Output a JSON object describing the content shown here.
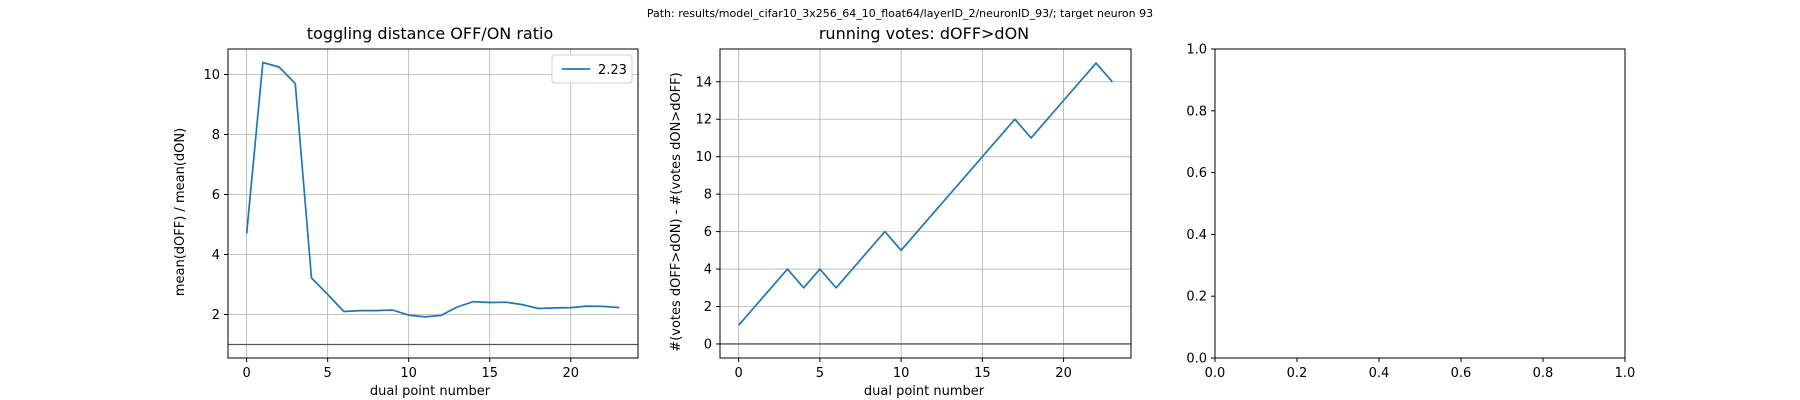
{
  "suptitle": "Path: results/model_cifar10_3x256_64_10_float64/layerID_2/neuronID_93/; target neuron 93",
  "colors": {
    "series": "#1f77b4",
    "hline": "#555555",
    "grid": "#b0b0b0"
  },
  "chart_data": [
    {
      "type": "line",
      "title": "toggling distance OFF/ON ratio",
      "xlabel": "dual point number",
      "ylabel": "mean(dOFF) / mean(dON)",
      "xlim": [
        -1.15,
        24.15
      ],
      "ylim": [
        0.55,
        10.85
      ],
      "xticks": [
        0,
        5,
        10,
        15,
        20
      ],
      "yticks": [
        2,
        4,
        6,
        8,
        10
      ],
      "grid": true,
      "hline": 1,
      "legend": {
        "position": "top-right",
        "entries": [
          "2.23"
        ]
      },
      "series": [
        {
          "name": "2.23",
          "x": [
            0,
            1,
            2,
            3,
            4,
            5,
            6,
            7,
            8,
            9,
            10,
            11,
            12,
            13,
            14,
            15,
            16,
            17,
            18,
            19,
            20,
            21,
            22,
            23
          ],
          "y": [
            4.7,
            10.4,
            10.25,
            9.7,
            3.22,
            2.67,
            2.1,
            2.13,
            2.13,
            2.15,
            1.98,
            1.92,
            1.97,
            2.25,
            2.43,
            2.4,
            2.41,
            2.33,
            2.2,
            2.22,
            2.23,
            2.28,
            2.27,
            2.23
          ]
        }
      ]
    },
    {
      "type": "line",
      "title": "running votes: dOFF>dON",
      "xlabel": "dual point number",
      "ylabel": "#(votes dOFF>dON) - #(votes dON>dOFF)",
      "xlim": [
        -1.15,
        24.15
      ],
      "ylim": [
        -0.75,
        15.75
      ],
      "xticks": [
        0,
        5,
        10,
        15,
        20
      ],
      "yticks": [
        0,
        2,
        4,
        6,
        8,
        10,
        12,
        14
      ],
      "grid": true,
      "hline": 0,
      "series": [
        {
          "x": [
            0,
            1,
            2,
            3,
            4,
            5,
            6,
            7,
            8,
            9,
            10,
            11,
            12,
            13,
            14,
            15,
            16,
            17,
            18,
            19,
            20,
            21,
            22,
            23
          ],
          "y": [
            1,
            2,
            3,
            4,
            3,
            4,
            3,
            4,
            5,
            6,
            5,
            6,
            7,
            8,
            9,
            10,
            11,
            12,
            11,
            12,
            13,
            14,
            15,
            14
          ]
        }
      ]
    },
    {
      "type": "empty",
      "xlim": [
        0,
        1
      ],
      "ylim": [
        0,
        1
      ],
      "xticks": [
        0.0,
        0.2,
        0.4,
        0.6,
        0.8,
        1.0
      ],
      "yticks": [
        0.0,
        0.2,
        0.4,
        0.6,
        0.8,
        1.0
      ],
      "grid": false
    }
  ]
}
